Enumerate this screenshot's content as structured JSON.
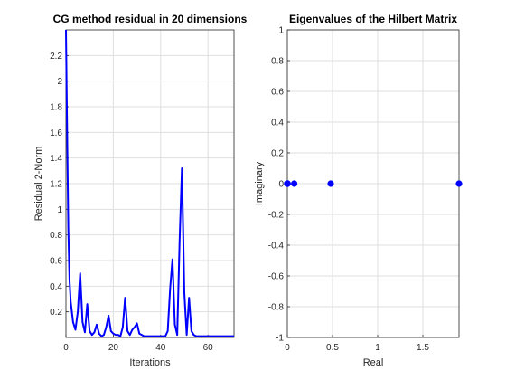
{
  "chart_data": [
    {
      "type": "line",
      "title": "CG method residual in 20 dimensions",
      "xlabel": "Iterations",
      "ylabel": "Residual 2-Norm",
      "xlim": [
        0,
        71
      ],
      "ylim": [
        0,
        2.4
      ],
      "xticks": [
        0,
        20,
        40,
        60
      ],
      "xtick_labels": [
        "0",
        "20",
        "40",
        "60"
      ],
      "yticks": [
        0.2,
        0.4,
        0.6,
        0.8,
        1,
        1.2,
        1.4,
        1.6,
        1.8,
        2,
        2.2
      ],
      "ytick_labels": [
        "0.2",
        "0.4",
        "0.6",
        "0.8",
        "1",
        "1.2",
        "1.4",
        "1.6",
        "1.8",
        "2",
        "2.2"
      ],
      "grid": true,
      "color": "#0000ff",
      "series": [
        {
          "x": [
            0,
            0.5,
            1,
            1.5,
            2,
            3,
            4,
            5,
            6,
            7,
            8,
            9,
            10,
            11,
            12,
            13,
            14,
            15,
            16,
            17,
            18,
            19,
            20,
            21,
            22,
            23,
            24,
            25,
            26,
            27,
            28,
            29,
            30,
            31,
            32,
            33,
            34,
            35,
            36,
            37,
            38,
            39,
            40,
            41,
            42,
            43,
            44,
            45,
            46,
            47,
            48,
            49,
            50,
            51,
            52,
            53,
            54,
            55,
            56,
            57,
            58,
            59,
            60,
            61,
            62,
            63,
            64,
            65,
            66,
            67,
            68,
            69,
            70,
            71
          ],
          "y": [
            2.4,
            1.6,
            0.85,
            0.45,
            0.28,
            0.12,
            0.06,
            0.2,
            0.5,
            0.12,
            0.04,
            0.26,
            0.05,
            0.02,
            0.04,
            0.1,
            0.03,
            0.01,
            0.02,
            0.08,
            0.17,
            0.05,
            0.03,
            0.02,
            0.02,
            0.01,
            0.08,
            0.31,
            0.05,
            0.02,
            0.06,
            0.08,
            0.11,
            0.03,
            0.02,
            0.01,
            0.01,
            0.01,
            0.01,
            0.01,
            0.01,
            0.01,
            0.01,
            0.01,
            0.01,
            0.05,
            0.38,
            0.61,
            0.1,
            0.02,
            0.75,
            1.32,
            0.35,
            0.02,
            0.31,
            0.05,
            0.02,
            0.01,
            0.01,
            0.01,
            0.01,
            0.01,
            0.01,
            0.01,
            0.01,
            0.01,
            0.01,
            0.01,
            0.01,
            0.01,
            0.01,
            0.01,
            0.01,
            0.01
          ]
        }
      ]
    },
    {
      "type": "scatter",
      "title": "Eigenvalues of the Hilbert Matrix",
      "xlabel": "Real",
      "ylabel": "Imaginary",
      "xlim": [
        0,
        1.9
      ],
      "ylim": [
        -1,
        1
      ],
      "xticks": [
        0,
        0.5,
        1,
        1.5
      ],
      "xtick_labels": [
        "0",
        "0.5",
        "1",
        "1.5"
      ],
      "yticks": [
        -1,
        -0.8,
        -0.6,
        -0.4,
        -0.2,
        0,
        0.2,
        0.4,
        0.6,
        0.8,
        1
      ],
      "ytick_labels": [
        "-1",
        "-0.8",
        "-0.6",
        "-0.4",
        "-0.2",
        "0",
        "0.2",
        "0.4",
        "0.6",
        "0.8",
        "1"
      ],
      "grid": true,
      "color": "#0000ff",
      "series": [
        {
          "x": [
            0.0,
            0.0,
            0.0,
            0.0,
            0.0,
            0.0,
            0.0,
            0.0,
            0.0,
            0.0,
            0.0,
            0.0,
            0.0,
            0.0,
            0.0,
            0.0,
            0.003,
            0.076,
            0.48,
            1.9
          ],
          "y": [
            0,
            0,
            0,
            0,
            0,
            0,
            0,
            0,
            0,
            0,
            0,
            0,
            0,
            0,
            0,
            0,
            0,
            0,
            0,
            0
          ]
        }
      ]
    }
  ]
}
